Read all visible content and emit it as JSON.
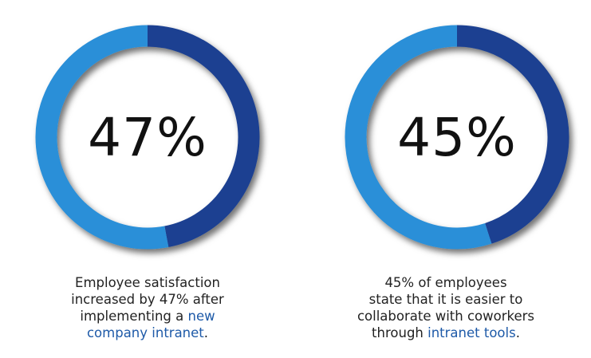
{
  "colors": {
    "primary": "#1a3f91",
    "secondary": "#2b8fd8",
    "link": "#1e5aa8",
    "text": "#222222"
  },
  "chart_data": [
    {
      "type": "pie",
      "value_label": "47%",
      "slices": [
        {
          "value": 47,
          "color": "#1a3f91"
        },
        {
          "value": 53,
          "color": "#2b8fd8"
        }
      ],
      "caption": {
        "lines": [
          {
            "parts": [
              {
                "text": "Employee satisfaction"
              }
            ]
          },
          {
            "parts": [
              {
                "text": "increased by 47% after"
              }
            ]
          },
          {
            "parts": [
              {
                "text": "implementing a "
              },
              {
                "text": "new",
                "link": true
              }
            ]
          },
          {
            "parts": [
              {
                "text": "company intranet",
                "link": true
              },
              {
                "text": "."
              }
            ]
          }
        ]
      }
    },
    {
      "type": "pie",
      "value_label": "45%",
      "slices": [
        {
          "value": 45,
          "color": "#1a3f91"
        },
        {
          "value": 55,
          "color": "#2b8fd8"
        }
      ],
      "caption": {
        "lines": [
          {
            "parts": [
              {
                "text": "45% of employees"
              }
            ]
          },
          {
            "parts": [
              {
                "text": "state that it is easier to"
              }
            ]
          },
          {
            "parts": [
              {
                "text": "collaborate with coworkers"
              }
            ]
          },
          {
            "parts": [
              {
                "text": "through "
              },
              {
                "text": "intranet tools",
                "link": true
              },
              {
                "text": "."
              }
            ]
          }
        ]
      }
    }
  ]
}
